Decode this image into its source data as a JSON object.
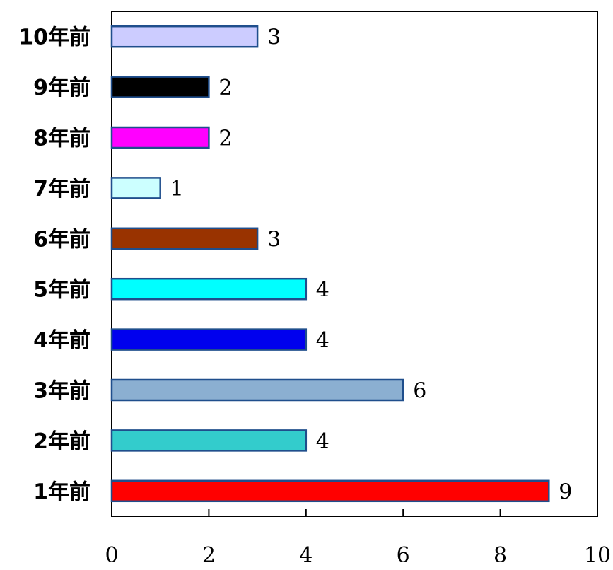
{
  "chart_data": {
    "type": "bar",
    "orientation": "horizontal",
    "categories": [
      "1年前",
      "2年前",
      "3年前",
      "4年前",
      "5年前",
      "6年前",
      "7年前",
      "8年前",
      "9年前",
      "10年前"
    ],
    "values": [
      9,
      4,
      6,
      4,
      4,
      3,
      1,
      2,
      2,
      3
    ],
    "bar_colors": [
      "#FF0000",
      "#33CCCC",
      "#8BAFD1",
      "#0000EE",
      "#00FFFF",
      "#993300",
      "#CCFFFF",
      "#FF00FF",
      "#000000",
      "#CCCCFF"
    ],
    "bar_outline_color": "#1F4E8C",
    "xlim": [
      0,
      10
    ],
    "xticks": [
      0,
      2,
      4,
      6,
      8,
      10
    ],
    "xtick_labels": [
      "0",
      "2",
      "4",
      "6",
      "8",
      "10"
    ],
    "data_labels": [
      "9",
      "4",
      "6",
      "4",
      "4",
      "3",
      "1",
      "2",
      "2",
      "3"
    ],
    "grid": false,
    "legend": "none"
  }
}
